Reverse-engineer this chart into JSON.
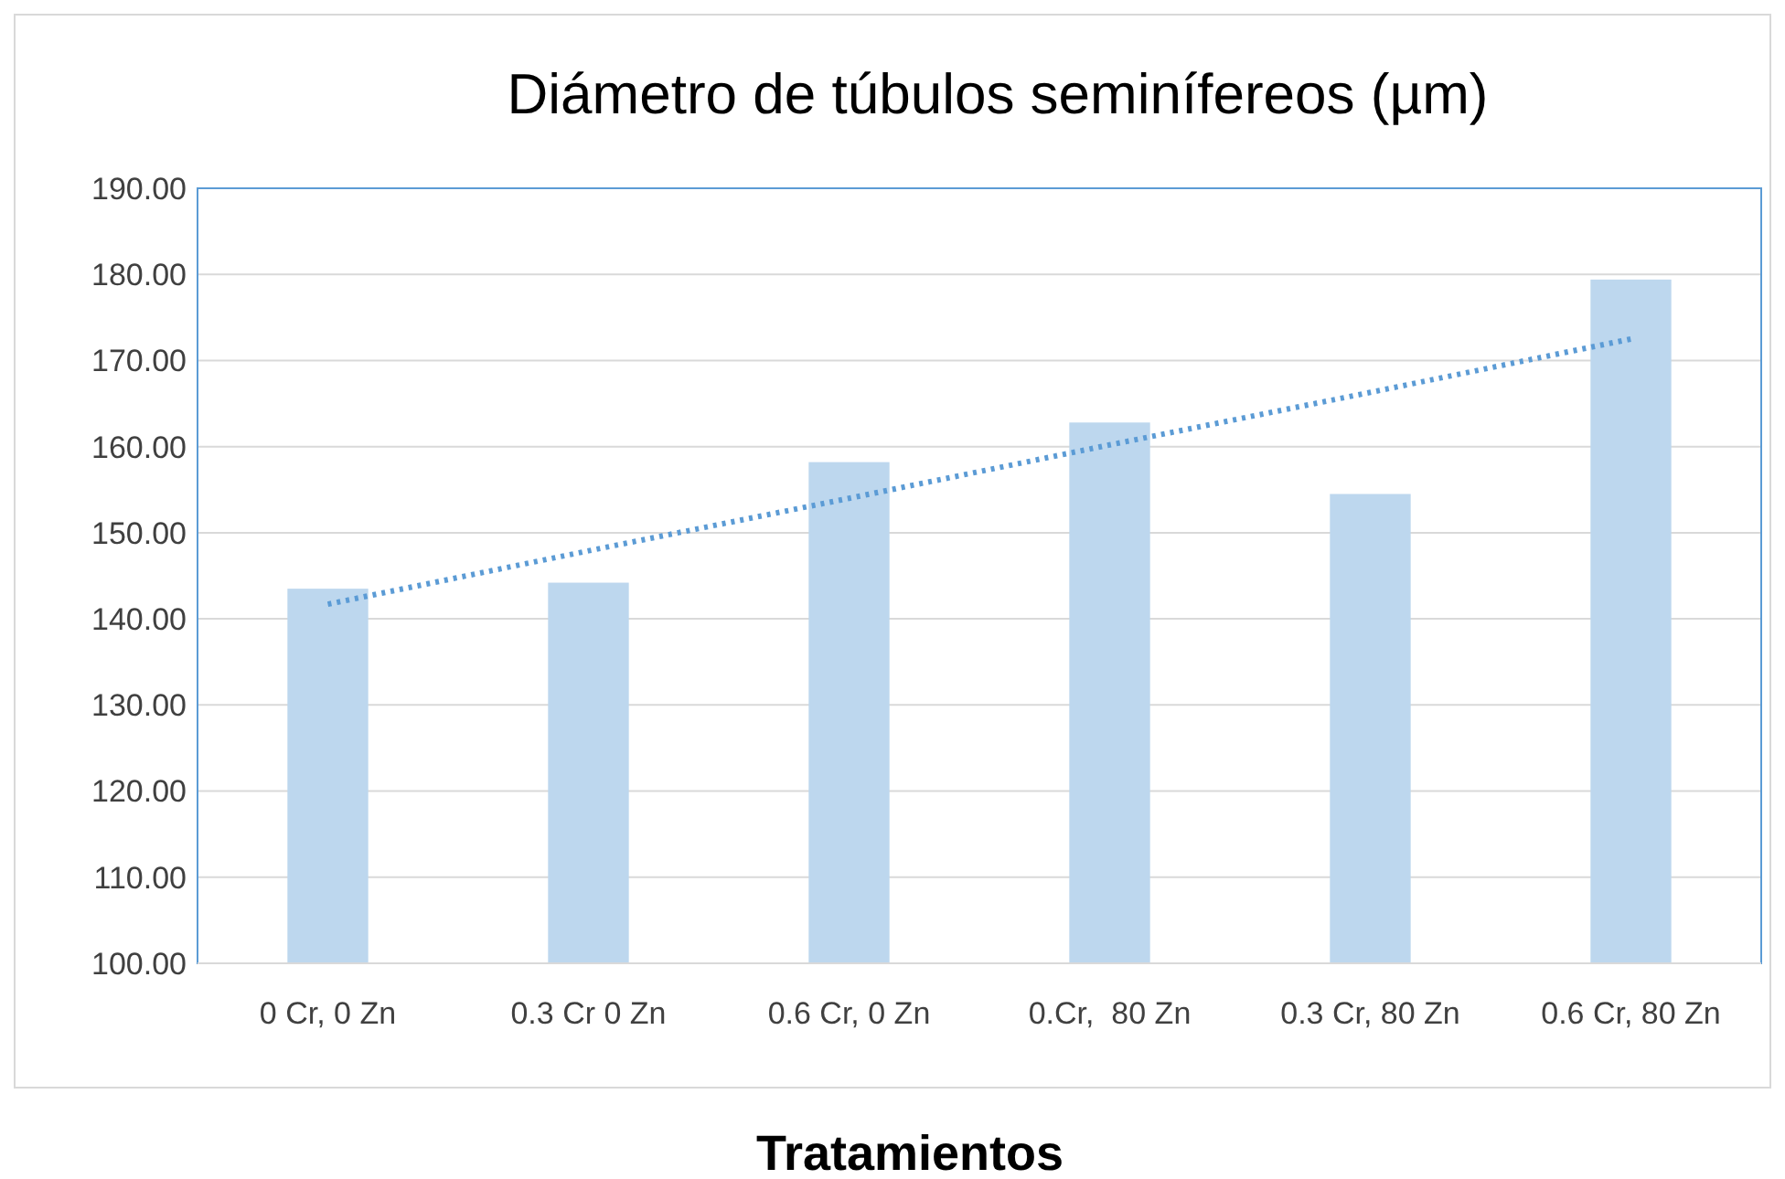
{
  "chart_data": {
    "type": "bar",
    "title": "Diámetro de túbulos seminífereos (µm)",
    "xlabel": "Tratamientos",
    "categories": [
      "0 Cr, 0 Zn",
      "0.3 Cr 0 Zn",
      "0.6 Cr, 0 Zn",
      "0.Cr,  80 Zn",
      "0.3 Cr, 80 Zn",
      "0.6 Cr, 80 Zn"
    ],
    "series": [
      {
        "color": "#bdd7ee",
        "values": [
          143.5,
          144.2,
          158.2,
          162.8,
          154.5,
          179.4
        ]
      },
      {
        "type": "line",
        "color": "#5b9bd5",
        "line_style": "dotted",
        "marker": "none",
        "values": [
          141.7,
          147.9,
          154.0,
          160.2,
          166.3,
          172.5
        ]
      }
    ],
    "ylim": [
      100,
      190
    ],
    "yticks": [
      {
        "value": 100,
        "label": "100.00"
      },
      {
        "value": 110,
        "label": "110.00"
      },
      {
        "value": 120,
        "label": "120.00"
      },
      {
        "value": 130,
        "label": "130.00"
      },
      {
        "value": 140,
        "label": "140.00"
      },
      {
        "value": 150,
        "label": "150.00"
      },
      {
        "value": 160,
        "label": "160.00"
      },
      {
        "value": 170,
        "label": "170.00"
      },
      {
        "value": 180,
        "label": "180.00"
      },
      {
        "value": 190,
        "label": "190.00"
      }
    ],
    "grid": "y"
  }
}
